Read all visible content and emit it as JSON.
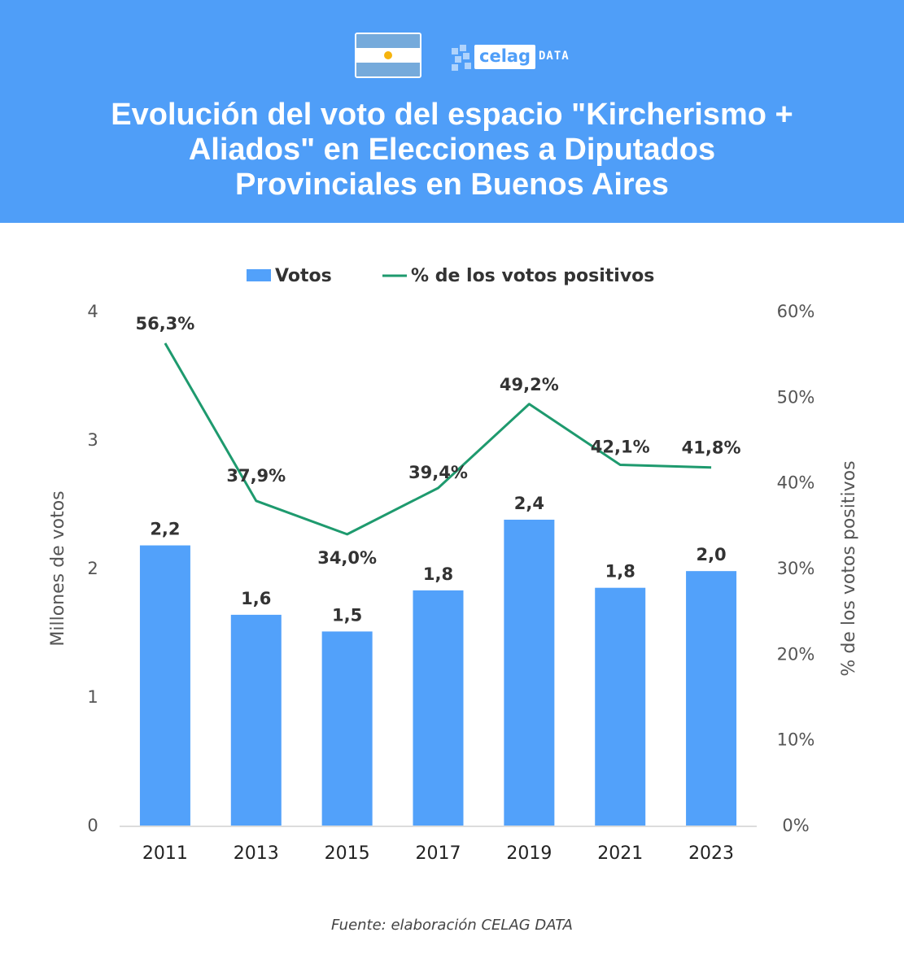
{
  "brand": {
    "logo_word": "celag",
    "logo_suffix": "DATA",
    "flag_icon": "argentina-flag-icon"
  },
  "title": "Evolución del voto del espacio \"Kircherismo +\nAliados\" en Elecciones a Diputados\nProvinciales en Buenos Aires",
  "source": "Fuente: elaboración CELAG DATA",
  "colors": {
    "header": "#4f9ef8",
    "bar": "#52a1fa",
    "line": "#1e9a6e",
    "label": "#333333",
    "axis": "#555555"
  },
  "chart_data": {
    "type": "bar",
    "categories": [
      "2011",
      "2013",
      "2015",
      "2017",
      "2019",
      "2021",
      "2023"
    ],
    "series": [
      {
        "name": "Votos",
        "type": "bar",
        "axis": "left",
        "values": [
          2.18,
          1.64,
          1.51,
          1.83,
          2.38,
          1.85,
          1.98
        ],
        "labels": [
          "2,2",
          "1,6",
          "1,5",
          "1,8",
          "2,4",
          "1,8",
          "2,0"
        ]
      },
      {
        "name": "% de los votos positivos",
        "type": "line",
        "axis": "right",
        "values": [
          56.3,
          37.9,
          34.0,
          39.4,
          49.2,
          42.1,
          41.8
        ],
        "labels": [
          "56,3%",
          "37,9%",
          "34,0%",
          "39,4%",
          "49,2%",
          "42,1%",
          "41,8%"
        ]
      }
    ],
    "ylabel": "Millones de votos",
    "ylim": [
      0,
      4
    ],
    "yticks": [
      "0",
      "1",
      "2",
      "3",
      "4"
    ],
    "y2label": "% de los votos positivos",
    "y2lim": [
      0,
      60
    ],
    "y2ticks": [
      "0%",
      "10%",
      "20%",
      "30%",
      "40%",
      "50%",
      "60%"
    ],
    "legend": "top-center",
    "grid": false
  }
}
